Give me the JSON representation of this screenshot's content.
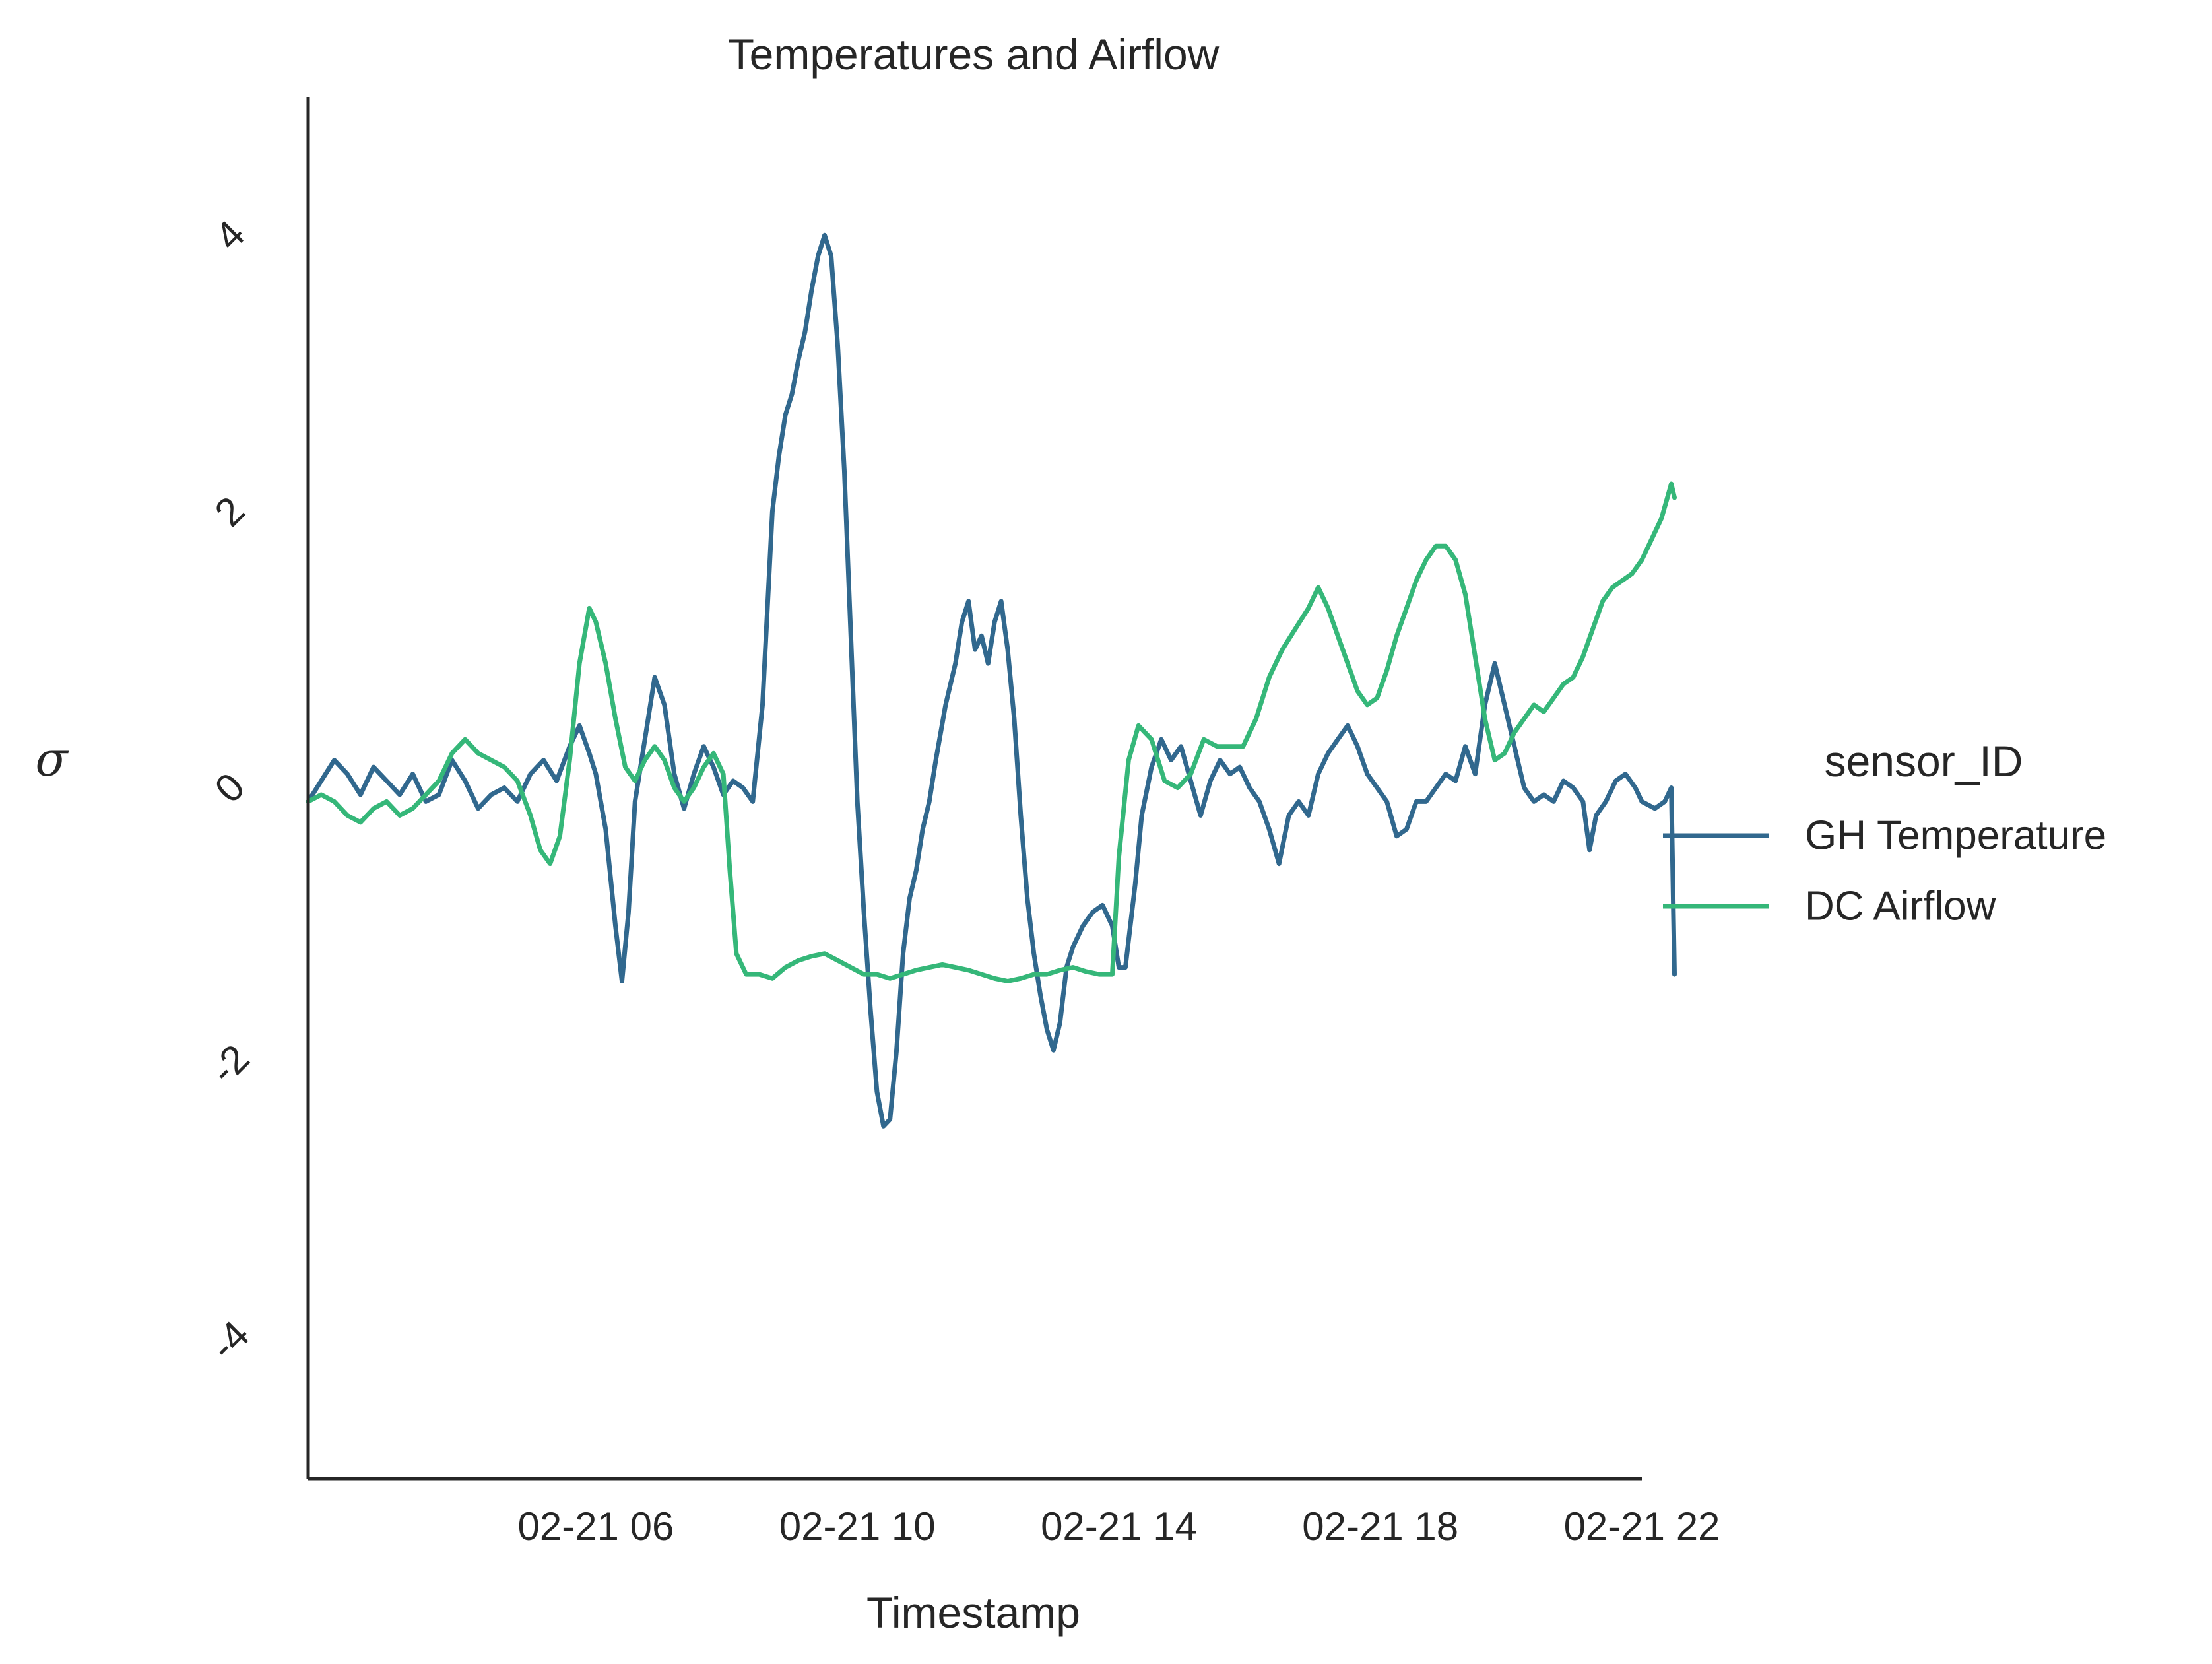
{
  "chart_data": {
    "type": "line",
    "title": "Temperatures and Airflow",
    "xlabel": "Timestamp",
    "ylabel": "σ",
    "x_ticks": [
      "02-21 06",
      "02-21 10",
      "02-21 14",
      "02-21 18",
      "02-21 22"
    ],
    "x_tick_hours": [
      6,
      10,
      14,
      18,
      22
    ],
    "y_ticks": [
      -4,
      -2,
      0,
      2,
      4
    ],
    "y_tick_labels": [
      "-4",
      "-2",
      "0",
      "2",
      "4"
    ],
    "xlim": [
      1.6,
      22.0
    ],
    "ylim": [
      -5.0,
      5.0
    ],
    "grid": false,
    "legend": {
      "title": "sensor_ID",
      "placement": "center-right-outside"
    },
    "series": [
      {
        "name": "GH Temperature",
        "color": "#31688e",
        "points": [
          [
            1.6,
            -0.1
          ],
          [
            1.8,
            0.05
          ],
          [
            2.0,
            0.2
          ],
          [
            2.2,
            0.1
          ],
          [
            2.4,
            -0.05
          ],
          [
            2.6,
            0.15
          ],
          [
            2.8,
            0.05
          ],
          [
            3.0,
            -0.05
          ],
          [
            3.2,
            0.1
          ],
          [
            3.4,
            -0.1
          ],
          [
            3.6,
            -0.05
          ],
          [
            3.8,
            0.2
          ],
          [
            4.0,
            0.05
          ],
          [
            4.2,
            -0.15
          ],
          [
            4.4,
            -0.05
          ],
          [
            4.6,
            0.0
          ],
          [
            4.8,
            -0.1
          ],
          [
            5.0,
            0.1
          ],
          [
            5.2,
            0.2
          ],
          [
            5.4,
            0.05
          ],
          [
            5.6,
            0.3
          ],
          [
            5.75,
            0.45
          ],
          [
            5.9,
            0.25
          ],
          [
            6.0,
            0.1
          ],
          [
            6.15,
            -0.3
          ],
          [
            6.3,
            -1.0
          ],
          [
            6.4,
            -1.4
          ],
          [
            6.5,
            -0.9
          ],
          [
            6.6,
            -0.1
          ],
          [
            6.8,
            0.5
          ],
          [
            6.9,
            0.8
          ],
          [
            7.05,
            0.6
          ],
          [
            7.2,
            0.1
          ],
          [
            7.35,
            -0.15
          ],
          [
            7.5,
            0.1
          ],
          [
            7.65,
            0.3
          ],
          [
            7.8,
            0.15
          ],
          [
            7.95,
            -0.05
          ],
          [
            8.1,
            0.05
          ],
          [
            8.25,
            0.0
          ],
          [
            8.4,
            -0.1
          ],
          [
            8.55,
            0.6
          ],
          [
            8.7,
            2.0
          ],
          [
            8.8,
            2.4
          ],
          [
            8.9,
            2.7
          ],
          [
            9.0,
            2.85
          ],
          [
            9.1,
            3.1
          ],
          [
            9.2,
            3.3
          ],
          [
            9.3,
            3.6
          ],
          [
            9.4,
            3.85
          ],
          [
            9.5,
            4.0
          ],
          [
            9.6,
            3.85
          ],
          [
            9.7,
            3.2
          ],
          [
            9.8,
            2.3
          ],
          [
            9.9,
            1.1
          ],
          [
            10.0,
            -0.1
          ],
          [
            10.1,
            -0.9
          ],
          [
            10.2,
            -1.6
          ],
          [
            10.3,
            -2.2
          ],
          [
            10.4,
            -2.45
          ],
          [
            10.5,
            -2.4
          ],
          [
            10.6,
            -1.9
          ],
          [
            10.7,
            -1.2
          ],
          [
            10.8,
            -0.8
          ],
          [
            10.9,
            -0.6
          ],
          [
            11.0,
            -0.3
          ],
          [
            11.1,
            -0.1
          ],
          [
            11.2,
            0.2
          ],
          [
            11.35,
            0.6
          ],
          [
            11.5,
            0.9
          ],
          [
            11.6,
            1.2
          ],
          [
            11.7,
            1.35
          ],
          [
            11.8,
            1.0
          ],
          [
            11.9,
            1.1
          ],
          [
            12.0,
            0.9
          ],
          [
            12.1,
            1.2
          ],
          [
            12.2,
            1.35
          ],
          [
            12.3,
            1.0
          ],
          [
            12.4,
            0.5
          ],
          [
            12.5,
            -0.2
          ],
          [
            12.6,
            -0.8
          ],
          [
            12.7,
            -1.2
          ],
          [
            12.8,
            -1.5
          ],
          [
            12.9,
            -1.75
          ],
          [
            13.0,
            -1.9
          ],
          [
            13.1,
            -1.7
          ],
          [
            13.2,
            -1.3
          ],
          [
            13.3,
            -1.15
          ],
          [
            13.45,
            -1.0
          ],
          [
            13.6,
            -0.9
          ],
          [
            13.75,
            -0.85
          ],
          [
            13.9,
            -1.0
          ],
          [
            14.0,
            -1.3
          ],
          [
            14.1,
            -1.3
          ],
          [
            14.25,
            -0.7
          ],
          [
            14.35,
            -0.2
          ],
          [
            14.5,
            0.15
          ],
          [
            14.65,
            0.35
          ],
          [
            14.8,
            0.2
          ],
          [
            14.95,
            0.3
          ],
          [
            15.1,
            0.05
          ],
          [
            15.25,
            -0.2
          ],
          [
            15.4,
            0.05
          ],
          [
            15.55,
            0.2
          ],
          [
            15.7,
            0.1
          ],
          [
            15.85,
            0.15
          ],
          [
            16.0,
            0.0
          ],
          [
            16.15,
            -0.1
          ],
          [
            16.3,
            -0.3
          ],
          [
            16.45,
            -0.55
          ],
          [
            16.6,
            -0.2
          ],
          [
            16.75,
            -0.1
          ],
          [
            16.9,
            -0.2
          ],
          [
            17.05,
            0.1
          ],
          [
            17.2,
            0.25
          ],
          [
            17.35,
            0.35
          ],
          [
            17.5,
            0.45
          ],
          [
            17.65,
            0.3
          ],
          [
            17.8,
            0.1
          ],
          [
            17.95,
            0.0
          ],
          [
            18.1,
            -0.1
          ],
          [
            18.25,
            -0.35
          ],
          [
            18.4,
            -0.3
          ],
          [
            18.55,
            -0.1
          ],
          [
            18.7,
            -0.1
          ],
          [
            18.85,
            0.0
          ],
          [
            19.0,
            0.1
          ],
          [
            19.15,
            0.05
          ],
          [
            19.3,
            0.3
          ],
          [
            19.45,
            0.1
          ],
          [
            19.6,
            0.6
          ],
          [
            19.75,
            0.9
          ],
          [
            19.9,
            0.6
          ],
          [
            20.05,
            0.3
          ],
          [
            20.2,
            0.0
          ],
          [
            20.35,
            -0.1
          ],
          [
            20.5,
            -0.05
          ],
          [
            20.65,
            -0.1
          ],
          [
            20.8,
            0.05
          ],
          [
            20.95,
            0.0
          ],
          [
            21.1,
            -0.1
          ],
          [
            21.2,
            -0.45
          ],
          [
            21.3,
            -0.2
          ],
          [
            21.45,
            -0.1
          ],
          [
            21.6,
            0.05
          ],
          [
            21.75,
            0.1
          ],
          [
            21.9,
            0.0
          ],
          [
            22.0,
            -0.1
          ],
          [
            22.2,
            -0.15
          ],
          [
            22.35,
            -0.1
          ],
          [
            22.45,
            0.0
          ],
          [
            22.5,
            -1.35
          ]
        ]
      },
      {
        "name": "DC Airflow",
        "color": "#35b779",
        "points": [
          [
            1.6,
            -0.1
          ],
          [
            1.8,
            -0.05
          ],
          [
            2.0,
            -0.1
          ],
          [
            2.2,
            -0.2
          ],
          [
            2.4,
            -0.25
          ],
          [
            2.6,
            -0.15
          ],
          [
            2.8,
            -0.1
          ],
          [
            3.0,
            -0.2
          ],
          [
            3.2,
            -0.15
          ],
          [
            3.4,
            -0.05
          ],
          [
            3.6,
            0.05
          ],
          [
            3.8,
            0.25
          ],
          [
            4.0,
            0.35
          ],
          [
            4.2,
            0.25
          ],
          [
            4.4,
            0.2
          ],
          [
            4.6,
            0.15
          ],
          [
            4.8,
            0.05
          ],
          [
            5.0,
            -0.2
          ],
          [
            5.15,
            -0.45
          ],
          [
            5.3,
            -0.55
          ],
          [
            5.45,
            -0.35
          ],
          [
            5.6,
            0.2
          ],
          [
            5.75,
            0.9
          ],
          [
            5.9,
            1.3
          ],
          [
            6.0,
            1.2
          ],
          [
            6.15,
            0.9
          ],
          [
            6.3,
            0.5
          ],
          [
            6.45,
            0.15
          ],
          [
            6.6,
            0.05
          ],
          [
            6.75,
            0.2
          ],
          [
            6.9,
            0.3
          ],
          [
            7.05,
            0.2
          ],
          [
            7.2,
            0.0
          ],
          [
            7.35,
            -0.1
          ],
          [
            7.5,
            0.0
          ],
          [
            7.65,
            0.15
          ],
          [
            7.8,
            0.25
          ],
          [
            7.95,
            0.1
          ],
          [
            8.05,
            -0.6
          ],
          [
            8.15,
            -1.2
          ],
          [
            8.3,
            -1.35
          ],
          [
            8.5,
            -1.35
          ],
          [
            8.7,
            -1.38
          ],
          [
            8.9,
            -1.3
          ],
          [
            9.1,
            -1.25
          ],
          [
            9.3,
            -1.22
          ],
          [
            9.5,
            -1.2
          ],
          [
            9.7,
            -1.25
          ],
          [
            9.9,
            -1.3
          ],
          [
            10.1,
            -1.35
          ],
          [
            10.3,
            -1.35
          ],
          [
            10.5,
            -1.38
          ],
          [
            10.7,
            -1.35
          ],
          [
            10.9,
            -1.32
          ],
          [
            11.1,
            -1.3
          ],
          [
            11.3,
            -1.28
          ],
          [
            11.5,
            -1.3
          ],
          [
            11.7,
            -1.32
          ],
          [
            11.9,
            -1.35
          ],
          [
            12.1,
            -1.38
          ],
          [
            12.3,
            -1.4
          ],
          [
            12.5,
            -1.38
          ],
          [
            12.7,
            -1.35
          ],
          [
            12.9,
            -1.35
          ],
          [
            13.1,
            -1.32
          ],
          [
            13.3,
            -1.3
          ],
          [
            13.5,
            -1.33
          ],
          [
            13.7,
            -1.35
          ],
          [
            13.9,
            -1.35
          ],
          [
            14.0,
            -0.5
          ],
          [
            14.15,
            0.2
          ],
          [
            14.3,
            0.45
          ],
          [
            14.5,
            0.35
          ],
          [
            14.7,
            0.05
          ],
          [
            14.9,
            0.0
          ],
          [
            15.1,
            0.1
          ],
          [
            15.3,
            0.35
          ],
          [
            15.5,
            0.3
          ],
          [
            15.7,
            0.3
          ],
          [
            15.9,
            0.3
          ],
          [
            16.1,
            0.5
          ],
          [
            16.3,
            0.8
          ],
          [
            16.5,
            1.0
          ],
          [
            16.7,
            1.15
          ],
          [
            16.9,
            1.3
          ],
          [
            17.05,
            1.45
          ],
          [
            17.2,
            1.3
          ],
          [
            17.35,
            1.1
          ],
          [
            17.5,
            0.9
          ],
          [
            17.65,
            0.7
          ],
          [
            17.8,
            0.6
          ],
          [
            17.95,
            0.65
          ],
          [
            18.1,
            0.85
          ],
          [
            18.25,
            1.1
          ],
          [
            18.4,
            1.3
          ],
          [
            18.55,
            1.5
          ],
          [
            18.7,
            1.65
          ],
          [
            18.85,
            1.75
          ],
          [
            19.0,
            1.75
          ],
          [
            19.15,
            1.65
          ],
          [
            19.3,
            1.4
          ],
          [
            19.45,
            0.95
          ],
          [
            19.6,
            0.5
          ],
          [
            19.75,
            0.2
          ],
          [
            19.9,
            0.25
          ],
          [
            20.05,
            0.4
          ],
          [
            20.2,
            0.5
          ],
          [
            20.35,
            0.6
          ],
          [
            20.5,
            0.55
          ],
          [
            20.65,
            0.65
          ],
          [
            20.8,
            0.75
          ],
          [
            20.95,
            0.8
          ],
          [
            21.1,
            0.95
          ],
          [
            21.25,
            1.15
          ],
          [
            21.4,
            1.35
          ],
          [
            21.55,
            1.45
          ],
          [
            21.7,
            1.5
          ],
          [
            21.85,
            1.55
          ],
          [
            22.0,
            1.65
          ],
          [
            22.15,
            1.8
          ],
          [
            22.3,
            1.95
          ],
          [
            22.45,
            2.2
          ],
          [
            22.5,
            2.1
          ]
        ]
      }
    ]
  }
}
